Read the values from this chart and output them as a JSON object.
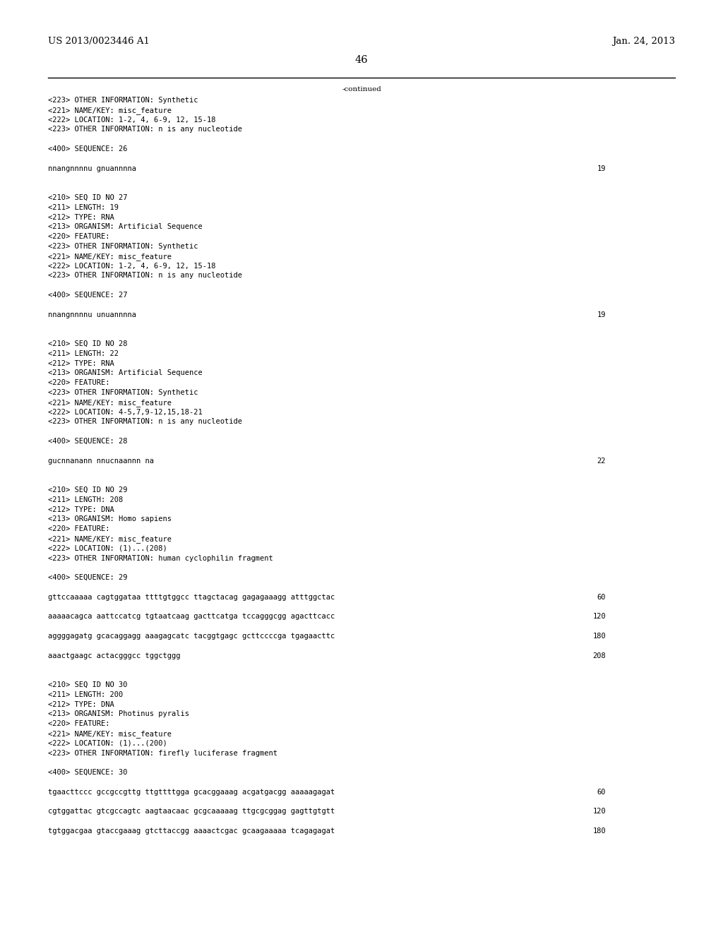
{
  "background_color": "#ffffff",
  "header_left": "US 2013/0023446 A1",
  "header_right": "Jan. 24, 2013",
  "page_number": "46",
  "continued_label": "-continued",
  "font_size_header": 9.5,
  "font_size_body": 7.5,
  "font_size_page_num": 10.5,
  "lines": [
    {
      "text": "<223> OTHER INFORMATION: Synthetic",
      "num": null
    },
    {
      "text": "<221> NAME/KEY: misc_feature",
      "num": null
    },
    {
      "text": "<222> LOCATION: 1-2, 4, 6-9, 12, 15-18",
      "num": null
    },
    {
      "text": "<223> OTHER INFORMATION: n is any nucleotide",
      "num": null
    },
    {
      "text": "",
      "num": null
    },
    {
      "text": "<400> SEQUENCE: 26",
      "num": null
    },
    {
      "text": "",
      "num": null
    },
    {
      "text": "nnangnnnnu gnuannnna",
      "num": "19"
    },
    {
      "text": "",
      "num": null
    },
    {
      "text": "",
      "num": null
    },
    {
      "text": "<210> SEQ ID NO 27",
      "num": null
    },
    {
      "text": "<211> LENGTH: 19",
      "num": null
    },
    {
      "text": "<212> TYPE: RNA",
      "num": null
    },
    {
      "text": "<213> ORGANISM: Artificial Sequence",
      "num": null
    },
    {
      "text": "<220> FEATURE:",
      "num": null
    },
    {
      "text": "<223> OTHER INFORMATION: Synthetic",
      "num": null
    },
    {
      "text": "<221> NAME/KEY: misc_feature",
      "num": null
    },
    {
      "text": "<222> LOCATION: 1-2, 4, 6-9, 12, 15-18",
      "num": null
    },
    {
      "text": "<223> OTHER INFORMATION: n is any nucleotide",
      "num": null
    },
    {
      "text": "",
      "num": null
    },
    {
      "text": "<400> SEQUENCE: 27",
      "num": null
    },
    {
      "text": "",
      "num": null
    },
    {
      "text": "nnangnnnnu unuannnna",
      "num": "19"
    },
    {
      "text": "",
      "num": null
    },
    {
      "text": "",
      "num": null
    },
    {
      "text": "<210> SEQ ID NO 28",
      "num": null
    },
    {
      "text": "<211> LENGTH: 22",
      "num": null
    },
    {
      "text": "<212> TYPE: RNA",
      "num": null
    },
    {
      "text": "<213> ORGANISM: Artificial Sequence",
      "num": null
    },
    {
      "text": "<220> FEATURE:",
      "num": null
    },
    {
      "text": "<223> OTHER INFORMATION: Synthetic",
      "num": null
    },
    {
      "text": "<221> NAME/KEY: misc_feature",
      "num": null
    },
    {
      "text": "<222> LOCATION: 4-5,7,9-12,15,18-21",
      "num": null
    },
    {
      "text": "<223> OTHER INFORMATION: n is any nucleotide",
      "num": null
    },
    {
      "text": "",
      "num": null
    },
    {
      "text": "<400> SEQUENCE: 28",
      "num": null
    },
    {
      "text": "",
      "num": null
    },
    {
      "text": "gucnnanann nnucnaannn na",
      "num": "22"
    },
    {
      "text": "",
      "num": null
    },
    {
      "text": "",
      "num": null
    },
    {
      "text": "<210> SEQ ID NO 29",
      "num": null
    },
    {
      "text": "<211> LENGTH: 208",
      "num": null
    },
    {
      "text": "<212> TYPE: DNA",
      "num": null
    },
    {
      "text": "<213> ORGANISM: Homo sapiens",
      "num": null
    },
    {
      "text": "<220> FEATURE:",
      "num": null
    },
    {
      "text": "<221> NAME/KEY: misc_feature",
      "num": null
    },
    {
      "text": "<222> LOCATION: (1)...(208)",
      "num": null
    },
    {
      "text": "<223> OTHER INFORMATION: human cyclophilin fragment",
      "num": null
    },
    {
      "text": "",
      "num": null
    },
    {
      "text": "<400> SEQUENCE: 29",
      "num": null
    },
    {
      "text": "",
      "num": null
    },
    {
      "text": "gttccaaaaa cagtggataa ttttgtggcc ttagctacag gagagaaagg atttggctac",
      "num": "60"
    },
    {
      "text": "",
      "num": null
    },
    {
      "text": "aaaaacagca aattccatcg tgtaatcaag gacttcatga tccagggcgg agacttcacc",
      "num": "120"
    },
    {
      "text": "",
      "num": null
    },
    {
      "text": "aggggagatg gcacaggagg aaagagcatc tacggtgagc gcttccccga tgagaacttc",
      "num": "180"
    },
    {
      "text": "",
      "num": null
    },
    {
      "text": "aaactgaagc actacgggcc tggctggg",
      "num": "208"
    },
    {
      "text": "",
      "num": null
    },
    {
      "text": "",
      "num": null
    },
    {
      "text": "<210> SEQ ID NO 30",
      "num": null
    },
    {
      "text": "<211> LENGTH: 200",
      "num": null
    },
    {
      "text": "<212> TYPE: DNA",
      "num": null
    },
    {
      "text": "<213> ORGANISM: Photinus pyralis",
      "num": null
    },
    {
      "text": "<220> FEATURE:",
      "num": null
    },
    {
      "text": "<221> NAME/KEY: misc_feature",
      "num": null
    },
    {
      "text": "<222> LOCATION: (1)...(200)",
      "num": null
    },
    {
      "text": "<223> OTHER INFORMATION: firefly luciferase fragment",
      "num": null
    },
    {
      "text": "",
      "num": null
    },
    {
      "text": "<400> SEQUENCE: 30",
      "num": null
    },
    {
      "text": "",
      "num": null
    },
    {
      "text": "tgaacttccc gccgccgttg ttgttttgga gcacggaaag acgatgacgg aaaaagagat",
      "num": "60"
    },
    {
      "text": "",
      "num": null
    },
    {
      "text": "cgtggattac gtcgccagtc aagtaacaac gcgcaaaaag ttgcgcggag gagttgtgtt",
      "num": "120"
    },
    {
      "text": "",
      "num": null
    },
    {
      "text": "tgtggacgaa gtaccgaaag gtcttaccgg aaaactcgac gcaagaaaaa tcagagagat",
      "num": "180"
    }
  ]
}
